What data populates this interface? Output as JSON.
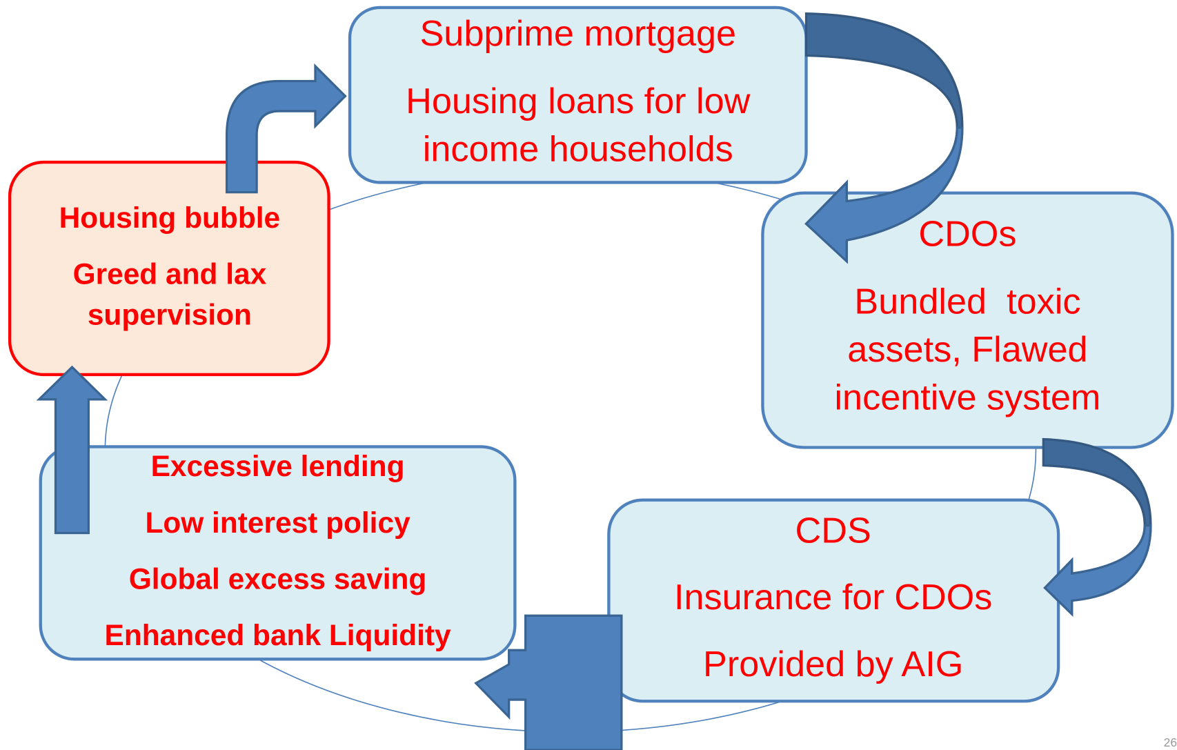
{
  "nodes": [
    {
      "lines": [
        "Subprime mortgage",
        "Housing loans for low",
        "income households"
      ]
    },
    {
      "lines": [
        "CDOs",
        "Bundled  toxic",
        "assets, Flawed",
        "incentive system"
      ]
    },
    {
      "lines": [
        "CDS",
        "Insurance for CDOs",
        "Provided by AIG"
      ]
    },
    {
      "lines": [
        "Excessive lending",
        "Low interest policy",
        "Global excess saving",
        "Enhanced bank Liquidity"
      ]
    },
    {
      "lines": [
        "Housing bubble",
        "Greed and lax",
        "supervision"
      ]
    }
  ],
  "page_number": "26"
}
